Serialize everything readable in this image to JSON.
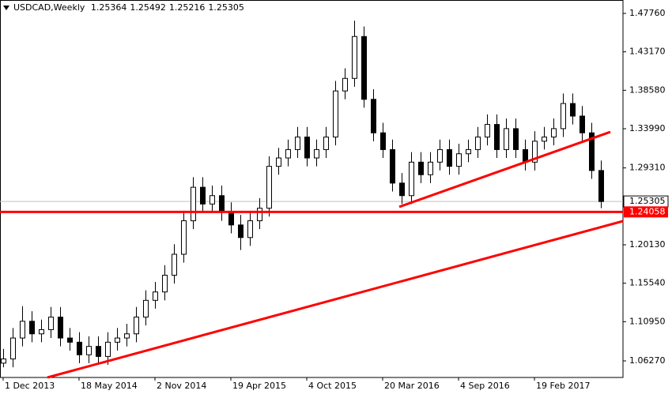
{
  "chart_data": {
    "type": "candlestick",
    "symbol": "USDCAD,Weekly",
    "quote": [
      1.25364,
      1.25492,
      1.25216,
      1.25305
    ],
    "current_price": 1.25305,
    "level": 1.24058,
    "bull_color": "#ffffff",
    "bear_color": "#000000",
    "line_color": "#ff0000",
    "xlim": [
      -0.33,
      65.33
    ],
    "ylim": [
      1.0429,
      1.4936
    ],
    "yticks": [
      {
        "value": 1.4776,
        "label": "1.47760"
      },
      {
        "value": 1.4317,
        "label": "1.43170"
      },
      {
        "value": 1.3858,
        "label": "1.38580"
      },
      {
        "value": 1.3399,
        "label": "1.33990"
      },
      {
        "value": 1.2931,
        "label": "1.29310"
      },
      {
        "value": 1.2013,
        "label": "1.20130"
      },
      {
        "value": 1.1554,
        "label": "1.15540"
      },
      {
        "value": 1.1095,
        "label": "1.10950"
      },
      {
        "value": 1.0627,
        "label": "1.06270"
      }
    ],
    "xticks": [
      {
        "value": 0,
        "label": "1 Dec 2013"
      },
      {
        "value": 8,
        "label": "18 May 2014"
      },
      {
        "value": 16,
        "label": "2 Nov 2014"
      },
      {
        "value": 24,
        "label": "19 Apr 2015"
      },
      {
        "value": 32,
        "label": "4 Oct 2015"
      },
      {
        "value": 40,
        "label": "20 Mar 2016"
      },
      {
        "value": 48,
        "label": "4 Sep 2016"
      },
      {
        "value": 56,
        "label": "19 Feb 2017"
      }
    ],
    "open": [
      1.06,
      1.065,
      1.09,
      1.11,
      1.095,
      1.1,
      1.115,
      1.09,
      1.085,
      1.07,
      1.08,
      1.068,
      1.085,
      1.09,
      1.095,
      1.115,
      1.135,
      1.145,
      1.165,
      1.19,
      1.23,
      1.27,
      1.25,
      1.26,
      1.24,
      1.225,
      1.21,
      1.23,
      1.245,
      1.295,
      1.305,
      1.315,
      1.33,
      1.305,
      1.315,
      1.33,
      1.385,
      1.4,
      1.45,
      1.375,
      1.335,
      1.315,
      1.275,
      1.26,
      1.3,
      1.285,
      1.3,
      1.315,
      1.295,
      1.31,
      1.315,
      1.33,
      1.345,
      1.315,
      1.34,
      1.315,
      1.3,
      1.325,
      1.33,
      1.34,
      1.37,
      1.355,
      1.335,
      1.29
    ],
    "high": [
      1.077,
      1.102,
      1.128,
      1.122,
      1.112,
      1.127,
      1.127,
      1.102,
      1.097,
      1.092,
      1.092,
      1.097,
      1.102,
      1.107,
      1.127,
      1.147,
      1.157,
      1.177,
      1.202,
      1.242,
      1.282,
      1.282,
      1.272,
      1.272,
      1.252,
      1.237,
      1.242,
      1.257,
      1.307,
      1.317,
      1.327,
      1.342,
      1.342,
      1.327,
      1.342,
      1.397,
      1.412,
      1.469,
      1.462,
      1.387,
      1.347,
      1.327,
      1.287,
      1.312,
      1.312,
      1.312,
      1.327,
      1.327,
      1.322,
      1.327,
      1.342,
      1.357,
      1.357,
      1.352,
      1.352,
      1.327,
      1.337,
      1.342,
      1.352,
      1.382,
      1.382,
      1.367,
      1.347,
      1.302
    ],
    "low": [
      1.055,
      1.055,
      1.08,
      1.085,
      1.085,
      1.09,
      1.08,
      1.075,
      1.06,
      1.06,
      1.058,
      1.058,
      1.075,
      1.08,
      1.085,
      1.105,
      1.125,
      1.135,
      1.155,
      1.18,
      1.22,
      1.24,
      1.24,
      1.23,
      1.215,
      1.195,
      1.2,
      1.22,
      1.235,
      1.285,
      1.295,
      1.305,
      1.295,
      1.295,
      1.305,
      1.32,
      1.375,
      1.39,
      1.365,
      1.325,
      1.305,
      1.265,
      1.25,
      1.25,
      1.275,
      1.275,
      1.29,
      1.285,
      1.285,
      1.3,
      1.305,
      1.32,
      1.305,
      1.305,
      1.305,
      1.29,
      1.29,
      1.315,
      1.32,
      1.33,
      1.345,
      1.325,
      1.28,
      1.245
    ],
    "close": [
      1.065,
      1.09,
      1.11,
      1.095,
      1.1,
      1.115,
      1.09,
      1.085,
      1.07,
      1.08,
      1.068,
      1.085,
      1.09,
      1.095,
      1.115,
      1.135,
      1.145,
      1.165,
      1.19,
      1.23,
      1.27,
      1.25,
      1.26,
      1.24,
      1.225,
      1.21,
      1.23,
      1.245,
      1.295,
      1.305,
      1.315,
      1.33,
      1.305,
      1.315,
      1.33,
      1.385,
      1.4,
      1.45,
      1.375,
      1.335,
      1.315,
      1.275,
      1.26,
      1.3,
      1.285,
      1.3,
      1.315,
      1.295,
      1.31,
      1.315,
      1.33,
      1.345,
      1.315,
      1.34,
      1.315,
      1.3,
      1.325,
      1.33,
      1.34,
      1.37,
      1.355,
      1.335,
      1.29,
      1.253
    ],
    "trendlines": [
      {
        "from": {
          "x": 4.67,
          "price": 1.0429
        },
        "to": {
          "x": 65.33,
          "price": 1.2296
        }
      },
      {
        "from": {
          "x": 41.75,
          "price": 1.2466
        },
        "to": {
          "x": 64,
          "price": 1.3361
        }
      }
    ]
  }
}
